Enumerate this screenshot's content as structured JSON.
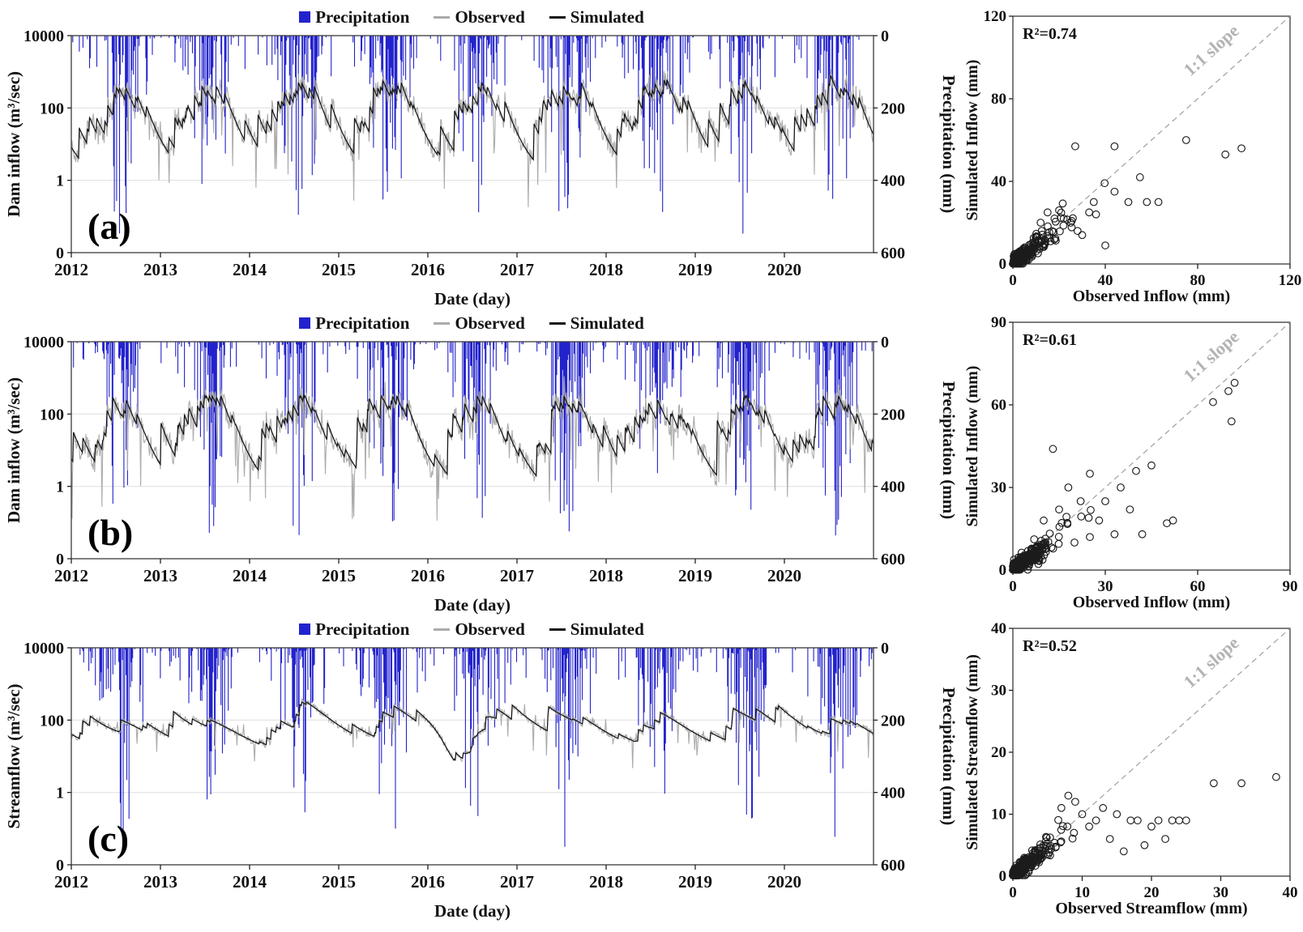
{
  "chart_data": [
    {
      "type": "line",
      "panel_label": "(a)",
      "legend": [
        "Precipitation",
        "Observed",
        "Simulated"
      ],
      "xlabel": "Date (day)",
      "ylabel_left": "Dam inflow (m³/sec)",
      "ylabel_right": "Precipitation (mm)",
      "x_ticks": [
        "2012",
        "2013",
        "2014",
        "2015",
        "2016",
        "2017",
        "2018",
        "2019",
        "2020"
      ],
      "y_ticks_left": [
        "10000",
        "100",
        "1",
        "0"
      ],
      "y_ticks_right": [
        "0",
        "200",
        "400",
        "600"
      ],
      "y_scale": "log",
      "x_years": 9,
      "precip_axis_max": 600,
      "colors": {
        "precipitation": "#2323CD",
        "observed": "#ABABAB",
        "simulated": "#161616"
      },
      "series_spec": {
        "seed": 11,
        "n": 1100,
        "base_log": 0.95,
        "min_log": 0.3,
        "max_log": 2.9,
        "recess": 0.012,
        "spike_off": -0.2,
        "gain": 1.0,
        "noise": 0.3,
        "drop_prob": 0.05,
        "drop_depth": 1.8,
        "precip_prob": 0.5,
        "precip_max": 560
      }
    },
    {
      "type": "line",
      "panel_label": "(b)",
      "legend": [
        "Precipitation",
        "Observed",
        "Simulated"
      ],
      "xlabel": "Date (day)",
      "ylabel_left": "Dam inflow (m³/sec)",
      "ylabel_right": "Precipitation (mm)",
      "x_ticks": [
        "2012",
        "2013",
        "2014",
        "2015",
        "2016",
        "2017",
        "2018",
        "2019",
        "2020"
      ],
      "y_ticks_left": [
        "10000",
        "100",
        "1",
        "0"
      ],
      "y_ticks_right": [
        "0",
        "200",
        "400",
        "600"
      ],
      "y_scale": "log",
      "x_years": 9,
      "precip_axis_max": 600,
      "colors": {
        "precipitation": "#2323CD",
        "observed": "#ABABAB",
        "simulated": "#161616"
      },
      "series_spec": {
        "seed": 12,
        "n": 1100,
        "base_log": 0.8,
        "min_log": 0.05,
        "max_log": 2.5,
        "recess": 0.012,
        "spike_off": -0.35,
        "gain": 1.0,
        "noise": 0.33,
        "drop_prob": 0.07,
        "drop_depth": 2.0,
        "precip_prob": 0.5,
        "precip_max": 560
      }
    },
    {
      "type": "line",
      "panel_label": "(c)",
      "legend": [
        "Precipitation",
        "Observed",
        "Simulated"
      ],
      "xlabel": "Date (day)",
      "ylabel_left": "Streamflow (m³/sec)",
      "ylabel_right": "Precipitation (mm)",
      "x_ticks": [
        "2012",
        "2013",
        "2014",
        "2015",
        "2016",
        "2017",
        "2018",
        "2019",
        "2020"
      ],
      "y_ticks_left": [
        "10000",
        "100",
        "1",
        "0"
      ],
      "y_ticks_right": [
        "0",
        "200",
        "400",
        "600"
      ],
      "y_scale": "log",
      "x_years": 9,
      "precip_axis_max": 600,
      "colors": {
        "precipitation": "#2323CD",
        "observed": "#ABABAB",
        "simulated": "#161616"
      },
      "series_spec": {
        "seed": 13,
        "n": 1100,
        "base_log": 1.62,
        "min_log": 1.28,
        "max_log": 2.5,
        "recess": 0.005,
        "spike_off": 0.2,
        "gain": 0.62,
        "noise": 0.09,
        "drop_prob": 0.02,
        "drop_depth": 0.9,
        "precip_prob": 0.5,
        "precip_max": 560,
        "dip": {
          "center": 4.38,
          "sigma": 0.16,
          "depth": 0.8
        }
      }
    },
    {
      "type": "scatter",
      "annotation": "R²=0.74",
      "xlabel": "Observed Inflow (mm)",
      "ylabel": "Simulated Inflow (mm)",
      "xlim": [
        0,
        120
      ],
      "ylim": [
        0,
        120
      ],
      "ticks": [
        0,
        40,
        80,
        120
      ],
      "diagonal_label": "1:1 slope",
      "marker": "open-circle",
      "outliers": [
        [
          27,
          57
        ],
        [
          44,
          57
        ],
        [
          75,
          60
        ],
        [
          92,
          53
        ],
        [
          99,
          56
        ],
        [
          55,
          42
        ],
        [
          44,
          35
        ],
        [
          50,
          30
        ],
        [
          63,
          30
        ],
        [
          33,
          25
        ],
        [
          36,
          24
        ],
        [
          25,
          20
        ],
        [
          22,
          22
        ],
        [
          28,
          16
        ],
        [
          30,
          14
        ],
        [
          40,
          9
        ],
        [
          35,
          30
        ],
        [
          20,
          26
        ],
        [
          18,
          22
        ],
        [
          15,
          25
        ],
        [
          12,
          20
        ],
        [
          58,
          30
        ]
      ],
      "cluster": {
        "n": 300,
        "scale": 5.5,
        "seed": 21,
        "slope": 0.9
      }
    },
    {
      "type": "scatter",
      "annotation": "R²=0.61",
      "xlabel": "Observed Inflow (mm)",
      "ylabel": "Simulated Inflow (mm)",
      "xlim": [
        0,
        90
      ],
      "ylim": [
        0,
        90
      ],
      "ticks": [
        0,
        30,
        60,
        90
      ],
      "diagonal_label": "1:1 slope",
      "marker": "open-circle",
      "outliers": [
        [
          13,
          44
        ],
        [
          18,
          30
        ],
        [
          25,
          35
        ],
        [
          65,
          61
        ],
        [
          70,
          65
        ],
        [
          72,
          68
        ],
        [
          71,
          54
        ],
        [
          35,
          30
        ],
        [
          40,
          36
        ],
        [
          45,
          38
        ],
        [
          50,
          17
        ],
        [
          38,
          22
        ],
        [
          30,
          25
        ],
        [
          25,
          12
        ],
        [
          33,
          13
        ],
        [
          42,
          13
        ],
        [
          52,
          18
        ],
        [
          20,
          10
        ],
        [
          28,
          18
        ],
        [
          15,
          22
        ],
        [
          10,
          18
        ],
        [
          22,
          25
        ]
      ],
      "cluster": {
        "n": 300,
        "scale": 4.2,
        "seed": 22,
        "slope": 0.85
      }
    },
    {
      "type": "scatter",
      "annotation": "R²=0.52",
      "xlabel": "Observed Streamflow (mm)",
      "ylabel": "Simulated Streamflow (mm)",
      "xlim": [
        0,
        40
      ],
      "ylim": [
        0,
        40
      ],
      "ticks": [
        0,
        10,
        20,
        30,
        40
      ],
      "diagonal_label": "1:1 slope",
      "marker": "open-circle",
      "outliers": [
        [
          29,
          15
        ],
        [
          33,
          15
        ],
        [
          38,
          16
        ],
        [
          24,
          9
        ],
        [
          25,
          9
        ],
        [
          15,
          10
        ],
        [
          17,
          9
        ],
        [
          20,
          8
        ],
        [
          21,
          9
        ],
        [
          13,
          11
        ],
        [
          12,
          9
        ],
        [
          19,
          5
        ],
        [
          22,
          6
        ],
        [
          16,
          4
        ],
        [
          11,
          8
        ],
        [
          10,
          10
        ],
        [
          9,
          12
        ],
        [
          8,
          13
        ],
        [
          7,
          11
        ],
        [
          14,
          6
        ],
        [
          18,
          9
        ],
        [
          23,
          9
        ]
      ],
      "cluster": {
        "n": 330,
        "scale": 1.7,
        "seed": 23,
        "slope": 0.9
      }
    }
  ]
}
